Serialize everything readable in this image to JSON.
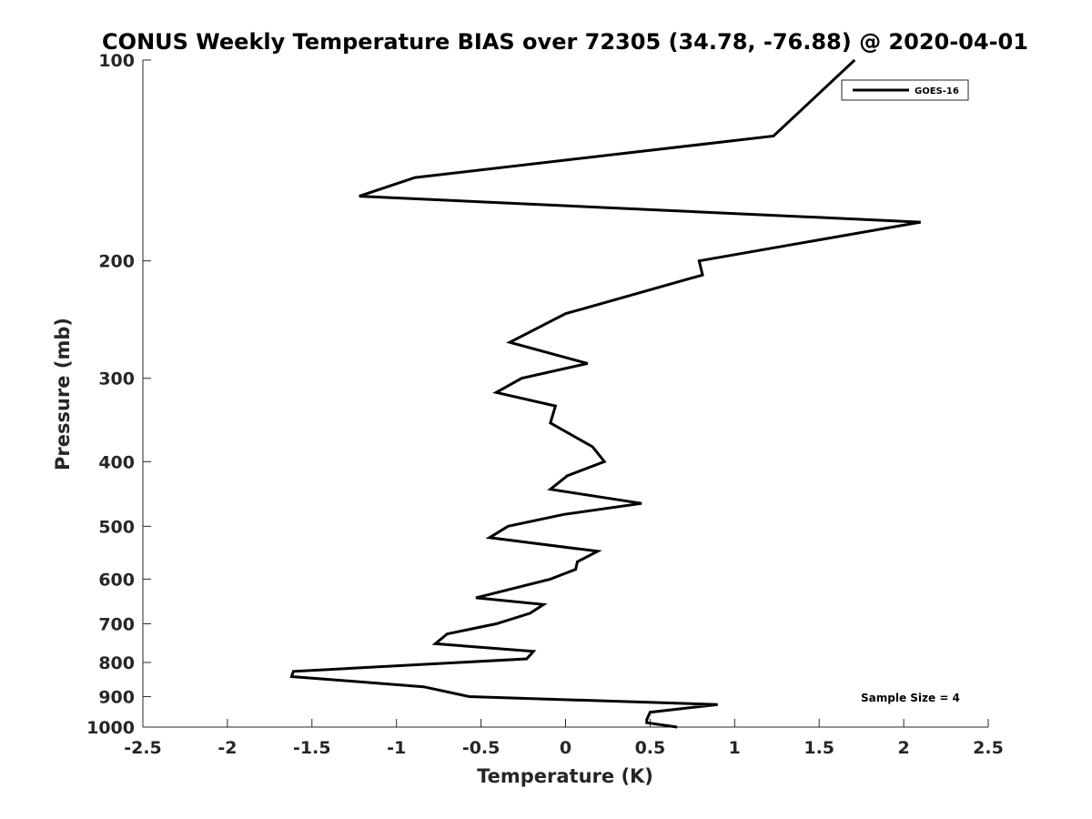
{
  "chart_data": {
    "type": "line",
    "title": "CONUS Weekly Temperature BIAS over 72305 (34.78, -76.88) @ 2020-04-01",
    "xlabel": "Temperature (K)",
    "ylabel": "Pressure (mb)",
    "xlim": [
      -2.5,
      2.5
    ],
    "ylim": [
      100,
      1000
    ],
    "y_scale": "log",
    "y_reversed": true,
    "grid": false,
    "x_ticks": [
      -2.5,
      -2,
      -1.5,
      -1,
      -0.5,
      0,
      0.5,
      1,
      1.5,
      2,
      2.5
    ],
    "x_tick_labels": [
      "-2.5",
      "-2",
      "-1.5",
      "-1",
      "-0.5",
      "0",
      "0.5",
      "1",
      "1.5",
      "2",
      "2.5"
    ],
    "y_ticks": [
      100,
      200,
      300,
      400,
      500,
      600,
      700,
      800,
      900,
      1000
    ],
    "y_tick_labels": [
      "100",
      "200",
      "300",
      "400",
      "500",
      "600",
      "700",
      "800",
      "900",
      "1000"
    ],
    "legend": {
      "position": "top-right",
      "entries": [
        "GOES-16"
      ]
    },
    "annotation": "Sample Size = 4",
    "series": [
      {
        "name": "GOES-16",
        "color": "#000000",
        "x": [
          1.71,
          1.23,
          -0.89,
          -1.22,
          2.1,
          0.79,
          0.81,
          0.0,
          -0.33,
          0.13,
          -0.26,
          -0.41,
          -0.06,
          -0.09,
          0.16,
          0.23,
          0.01,
          -0.09,
          0.45,
          -0.01,
          -0.34,
          -0.45,
          0.19,
          0.07,
          0.06,
          -0.09,
          -0.53,
          -0.13,
          -0.21,
          -0.41,
          -0.7,
          -0.77,
          -0.19,
          -0.23,
          -1.61,
          -1.62,
          -0.84,
          -0.57,
          0.9,
          0.5,
          0.48,
          0.48,
          0.66
        ],
        "y": [
          100,
          130,
          150,
          160,
          175,
          200,
          210,
          240,
          265,
          285,
          300,
          315,
          330,
          350,
          380,
          400,
          420,
          440,
          462,
          480,
          500,
          520,
          545,
          565,
          580,
          600,
          640,
          655,
          675,
          700,
          725,
          750,
          770,
          790,
          825,
          840,
          870,
          900,
          925,
          950,
          975,
          985,
          1000
        ]
      }
    ]
  }
}
